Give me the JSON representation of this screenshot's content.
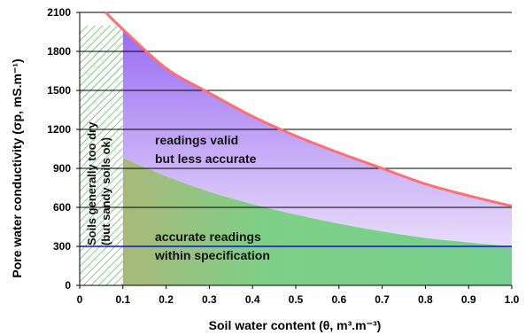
{
  "chart_data": {
    "type": "area",
    "xlabel": "Soil water content (θ, m³.m⁻³)",
    "ylabel": "Pore water conductivity (σp, mS.m⁻¹)",
    "xlim": [
      0,
      1.0
    ],
    "ylim": [
      0,
      2100
    ],
    "x_ticks": [
      "0",
      "0.1",
      "0.2",
      "0.3",
      "0.4",
      "0.5",
      "0.6",
      "0.7",
      "0.8",
      "0.9",
      "1.0"
    ],
    "y_ticks": [
      "0",
      "300",
      "600",
      "900",
      "1200",
      "1500",
      "1800",
      "2100"
    ],
    "grid": "horizontal",
    "upper_limit_curve": {
      "x": [
        0.06,
        0.1,
        0.2,
        0.3,
        0.4,
        0.5,
        0.6,
        0.7,
        0.8,
        0.9,
        1.0
      ],
      "y": [
        2100,
        1970,
        1670,
        1480,
        1300,
        1150,
        1020,
        900,
        780,
        690,
        610
      ]
    },
    "accuracy_limit_curve": {
      "x": [
        0.1,
        0.2,
        0.3,
        0.4,
        0.5,
        0.6,
        0.7,
        0.8,
        0.9,
        1.0
      ],
      "y": [
        980,
        840,
        720,
        625,
        545,
        475,
        415,
        365,
        330,
        300
      ]
    },
    "specification_line": {
      "y": 300,
      "label": "300",
      "color": "#1010d0"
    },
    "dry_region": {
      "x": [
        0,
        0.1
      ],
      "y_max": 2000
    },
    "annotations": {
      "valid_region_line1": "readings valid",
      "valid_region_line2": "but less accurate",
      "accurate_region_line1": "accurate readings",
      "accurate_region_line2": "within specification",
      "dry_region_line1": "Soils generally too dry",
      "dry_region_line2": "(but sandy soils ok)"
    },
    "colors": {
      "upper_curve": "#ff6f6f",
      "purple_region": "#a77df4",
      "green_region": "#7fcf86",
      "hatch": "#3aa83a",
      "spec_line": "#1010d0"
    }
  }
}
